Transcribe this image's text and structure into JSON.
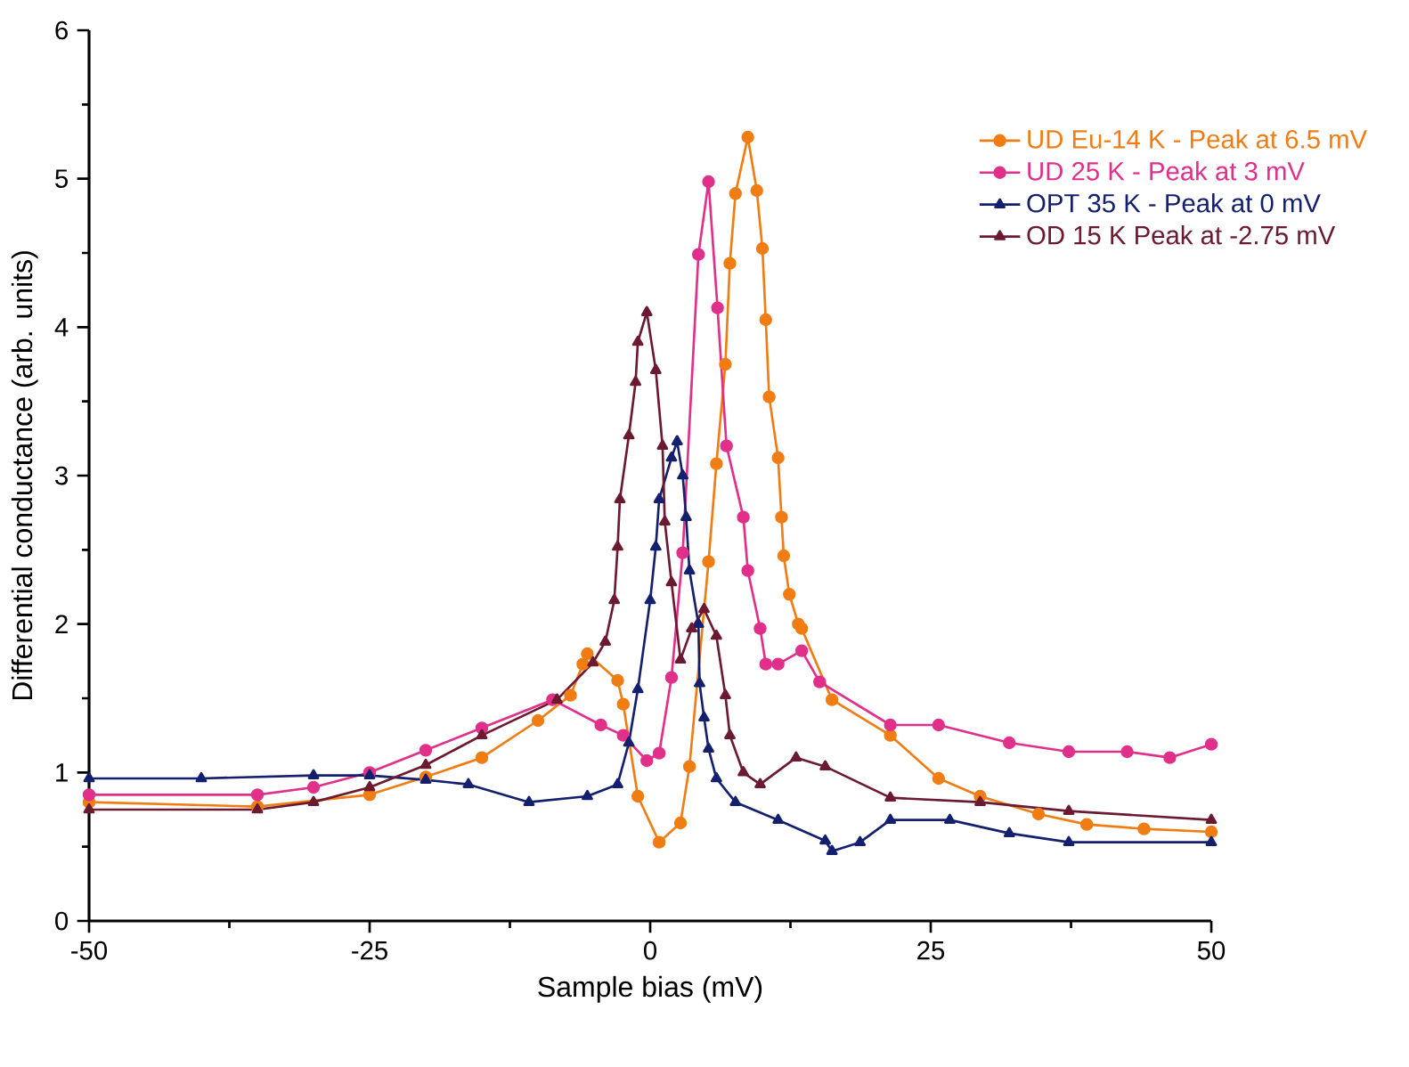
{
  "chart_data": {
    "type": "line",
    "xlabel": "Sample bias (mV)",
    "ylabel": "Differential conductance (arb. units)",
    "xlim": [
      -50,
      50
    ],
    "ylim": [
      0,
      6
    ],
    "xticks": [
      -50,
      -25,
      0,
      25,
      50
    ],
    "yticks": [
      0,
      1,
      2,
      3,
      4,
      5,
      6
    ],
    "legend": "top right",
    "grid": false,
    "series": [
      {
        "name": "UD Eu-14 K - Peak at 6.5 mV",
        "color": "#f07d14",
        "marker": "circle",
        "x": [
          -50,
          -35,
          -25,
          -20,
          -15,
          -10,
          -7.1,
          -6,
          -5.6,
          -2.9,
          -2.4,
          -1.1,
          0.8,
          2.7,
          3.5,
          5.2,
          5.9,
          6.7,
          7.1,
          7.6,
          8.7,
          9.5,
          10,
          10.3,
          10.6,
          11.4,
          11.7,
          11.9,
          12.4,
          13.2,
          13.5,
          16.2,
          21.4,
          25.7,
          29.4,
          34.6,
          38.9,
          44,
          50
        ],
        "values": [
          0.8,
          0.77,
          0.85,
          0.97,
          1.1,
          1.35,
          1.52,
          1.73,
          1.8,
          1.62,
          1.46,
          0.84,
          0.53,
          0.66,
          1.04,
          2.42,
          3.08,
          3.75,
          4.43,
          4.9,
          5.28,
          4.92,
          4.53,
          4.05,
          3.53,
          3.12,
          2.72,
          2.46,
          2.2,
          2.0,
          1.97,
          1.49,
          1.25,
          0.96,
          0.84,
          0.72,
          0.65,
          0.62,
          0.6
        ]
      },
      {
        "name": "UD 25 K - Peak at 3 mV",
        "color": "#e0308a",
        "marker": "circle",
        "x": [
          -50,
          -35,
          -30,
          -25,
          -20,
          -15,
          -8.7,
          -4.4,
          -2.4,
          -0.3,
          0.8,
          1.9,
          2.9,
          4.3,
          5.2,
          6,
          6.8,
          8.3,
          8.7,
          9.8,
          10.3,
          11.4,
          13.5,
          15.1,
          21.4,
          25.7,
          32,
          37.3,
          42.5,
          46.3,
          50
        ],
        "values": [
          0.85,
          0.85,
          0.9,
          1.0,
          1.15,
          1.3,
          1.49,
          1.32,
          1.25,
          1.08,
          1.13,
          1.64,
          2.48,
          4.49,
          4.98,
          4.13,
          3.2,
          2.72,
          2.36,
          1.97,
          1.73,
          1.73,
          1.82,
          1.61,
          1.32,
          1.32,
          1.2,
          1.14,
          1.14,
          1.1,
          1.19
        ]
      },
      {
        "name": "OPT 35 K - Peak at 0 mV",
        "color": "#14206e",
        "marker": "triangle",
        "x": [
          -50,
          -40,
          -30,
          -25,
          -20,
          -16.2,
          -10.8,
          -5.6,
          -2.9,
          -1.9,
          -1.1,
          0,
          0.5,
          0.8,
          1.9,
          2.4,
          2.9,
          3.2,
          3.5,
          4.3,
          4.4,
          4.8,
          5.2,
          5.9,
          7.6,
          11.4,
          15.6,
          16.2,
          18.7,
          21.4,
          26.7,
          32,
          37.3,
          50
        ],
        "values": [
          0.96,
          0.96,
          0.98,
          0.98,
          0.95,
          0.92,
          0.8,
          0.84,
          0.92,
          1.2,
          1.56,
          2.16,
          2.52,
          2.84,
          3.12,
          3.23,
          3.0,
          2.72,
          2.36,
          2.0,
          1.6,
          1.37,
          1.16,
          0.96,
          0.8,
          0.68,
          0.54,
          0.47,
          0.53,
          0.68,
          0.68,
          0.59,
          0.53,
          0.53
        ]
      },
      {
        "name": "OD 15 K Peak at -2.75 mV",
        "color": "#6b1a30",
        "marker": "triangle",
        "x": [
          -50,
          -35,
          -30,
          -25,
          -20,
          -15,
          -8.3,
          -5.1,
          -4,
          -3.2,
          -2.9,
          -2.7,
          -1.9,
          -1.3,
          -1.1,
          -0.3,
          0.5,
          1.1,
          1.3,
          1.9,
          2.7,
          3.7,
          4.8,
          5.9,
          6.7,
          7.1,
          8.3,
          9.8,
          13,
          15.6,
          21.4,
          29.4,
          37.3,
          50
        ],
        "values": [
          0.75,
          0.75,
          0.8,
          0.9,
          1.05,
          1.25,
          1.49,
          1.74,
          1.88,
          2.16,
          2.52,
          2.84,
          3.27,
          3.63,
          3.9,
          4.1,
          3.71,
          3.2,
          2.69,
          2.28,
          1.76,
          1.97,
          2.1,
          1.92,
          1.52,
          1.25,
          1.0,
          0.92,
          1.1,
          1.04,
          0.83,
          0.8,
          0.74,
          0.68
        ]
      }
    ]
  }
}
